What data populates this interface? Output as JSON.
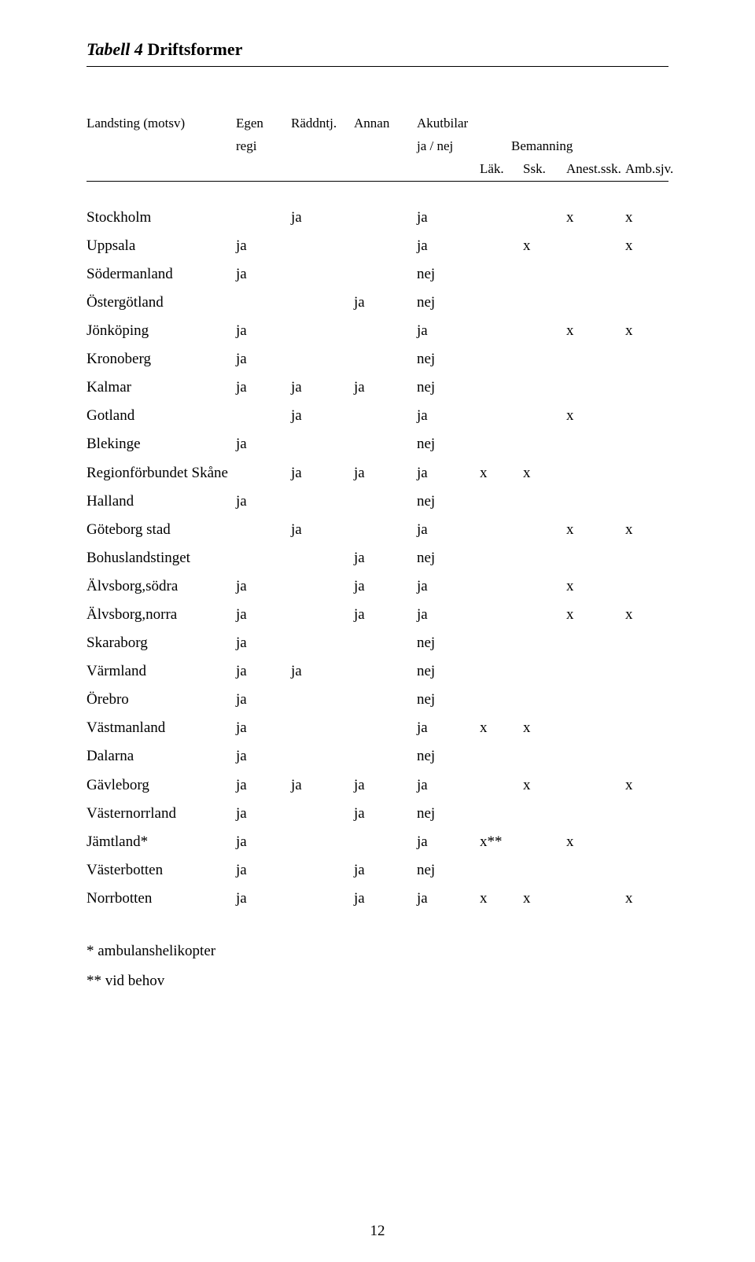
{
  "title_prefix": "Tabell 4",
  "title_main": "Driftsformer",
  "header": {
    "r1": {
      "c1": "Landsting (motsv)",
      "c2": "Egen",
      "c3": "Räddntj.",
      "c4": "Annan",
      "c5": "Akutbilar"
    },
    "r2": {
      "c2": "regi",
      "c5": "ja / nej",
      "c6span": "Bemanning"
    },
    "r3": {
      "c6": "Läk.",
      "c7": "Ssk.",
      "c8": "Anest.ssk.",
      "c9": "Amb.sjv."
    }
  },
  "rows": [
    {
      "n": "Stockholm",
      "c2": "",
      "c3": "ja",
      "c4": "",
      "c5": "ja",
      "c6": "",
      "c7": "",
      "c8": "x",
      "c9": "x"
    },
    {
      "n": "Uppsala",
      "c2": "ja",
      "c3": "",
      "c4": "",
      "c5": "ja",
      "c6": "",
      "c7": "x",
      "c8": "",
      "c9": "x"
    },
    {
      "n": "Södermanland",
      "c2": "ja",
      "c3": "",
      "c4": "",
      "c5": "nej",
      "c6": "",
      "c7": "",
      "c8": "",
      "c9": ""
    },
    {
      "n": "Östergötland",
      "c2": "",
      "c3": "",
      "c4": "ja",
      "c5": "nej",
      "c6": "",
      "c7": "",
      "c8": "",
      "c9": ""
    },
    {
      "n": "Jönköping",
      "c2": "ja",
      "c3": "",
      "c4": "",
      "c5": "ja",
      "c6": "",
      "c7": "",
      "c8": "x",
      "c9": "x"
    },
    {
      "n": "Kronoberg",
      "c2": "ja",
      "c3": "",
      "c4": "",
      "c5": "nej",
      "c6": "",
      "c7": "",
      "c8": "",
      "c9": ""
    },
    {
      "n": "Kalmar",
      "c2": "ja",
      "c3": "ja",
      "c4": "ja",
      "c5": "nej",
      "c6": "",
      "c7": "",
      "c8": "",
      "c9": ""
    },
    {
      "n": "Gotland",
      "c2": "",
      "c3": "ja",
      "c4": "",
      "c5": "ja",
      "c6": "",
      "c7": "",
      "c8": "x",
      "c9": ""
    },
    {
      "n": "Blekinge",
      "c2": "ja",
      "c3": "",
      "c4": "",
      "c5": "nej",
      "c6": "",
      "c7": "",
      "c8": "",
      "c9": ""
    },
    {
      "n": "Regionförbundet Skåne",
      "c2": "",
      "c3": "ja",
      "c4": "ja",
      "c5": "ja",
      "c6": "x",
      "c7": "x",
      "c8": "",
      "c9": ""
    },
    {
      "n": "Halland",
      "c2": "ja",
      "c3": "",
      "c4": "",
      "c5": "nej",
      "c6": "",
      "c7": "",
      "c8": "",
      "c9": ""
    },
    {
      "n": "Göteborg stad",
      "c2": "",
      "c3": "ja",
      "c4": "",
      "c5": "ja",
      "c6": "",
      "c7": "",
      "c8": "x",
      "c9": "x"
    },
    {
      "n": "Bohuslandstinget",
      "c2": "",
      "c3": "",
      "c4": "ja",
      "c5": "nej",
      "c6": "",
      "c7": "",
      "c8": "",
      "c9": ""
    },
    {
      "n": "Älvsborg,södra",
      "c2": "ja",
      "c3": "",
      "c4": "ja",
      "c5": "ja",
      "c6": "",
      "c7": "",
      "c8": "x",
      "c9": ""
    },
    {
      "n": "Älvsborg,norra",
      "c2": "ja",
      "c3": "",
      "c4": "ja",
      "c5": "ja",
      "c6": "",
      "c7": "",
      "c8": "x",
      "c9": "x"
    },
    {
      "n": "Skaraborg",
      "c2": "ja",
      "c3": "",
      "c4": "",
      "c5": "nej",
      "c6": "",
      "c7": "",
      "c8": "",
      "c9": ""
    },
    {
      "n": "Värmland",
      "c2": "ja",
      "c3": "ja",
      "c4": "",
      "c5": "nej",
      "c6": "",
      "c7": "",
      "c8": "",
      "c9": ""
    },
    {
      "n": "Örebro",
      "c2": "ja",
      "c3": "",
      "c4": "",
      "c5": "nej",
      "c6": "",
      "c7": "",
      "c8": "",
      "c9": ""
    },
    {
      "n": "Västmanland",
      "c2": "ja",
      "c3": "",
      "c4": "",
      "c5": "ja",
      "c6": "x",
      "c7": "x",
      "c8": "",
      "c9": ""
    },
    {
      "n": "Dalarna",
      "c2": "ja",
      "c3": "",
      "c4": "",
      "c5": "nej",
      "c6": "",
      "c7": "",
      "c8": "",
      "c9": ""
    },
    {
      "n": "Gävleborg",
      "c2": "ja",
      "c3": "ja",
      "c4": "ja",
      "c5": "ja",
      "c6": "",
      "c7": "x",
      "c8": "",
      "c9": "x"
    },
    {
      "n": "Västernorrland",
      "c2": "ja",
      "c3": "",
      "c4": "ja",
      "c5": "nej",
      "c6": "",
      "c7": "",
      "c8": "",
      "c9": ""
    },
    {
      "n": "Jämtland*",
      "c2": "ja",
      "c3": "",
      "c4": "",
      "c5": "ja",
      "c6": "x**",
      "c7": "",
      "c8": "x",
      "c9": ""
    },
    {
      "n": "Västerbotten",
      "c2": "ja",
      "c3": "",
      "c4": "ja",
      "c5": "nej",
      "c6": "",
      "c7": "",
      "c8": "",
      "c9": ""
    },
    {
      "n": "Norrbotten",
      "c2": "ja",
      "c3": "",
      "c4": "ja",
      "c5": "ja",
      "c6": "x",
      "c7": "x",
      "c8": "",
      "c9": "x"
    }
  ],
  "footnote1": "*   ambulanshelikopter",
  "footnote2": "** vid behov",
  "page_number": "12"
}
